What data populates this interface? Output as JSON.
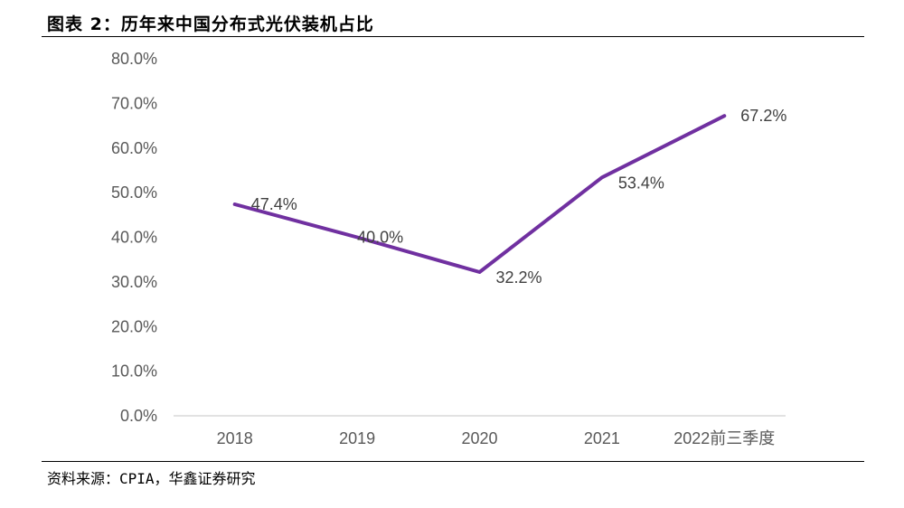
{
  "title": "图表 2：历年来中国分布式光伏装机占比",
  "source": "资料来源：CPIA，华鑫证券研究",
  "colors": {
    "line": "#7030A0",
    "axis": "#D9D9D9",
    "text": "#595959"
  },
  "chart_data": {
    "type": "line",
    "categories": [
      "2018",
      "2019",
      "2020",
      "2021",
      "2022前三季度"
    ],
    "series": [
      {
        "values": [
          47.4,
          40.0,
          32.2,
          53.4,
          67.2
        ],
        "data_labels": [
          "47.4%",
          "40.0%",
          "32.2%",
          "53.4%",
          "67.2%"
        ]
      }
    ],
    "ylim": [
      0,
      80
    ],
    "yticks": [
      0,
      10,
      20,
      30,
      40,
      50,
      60,
      70,
      80
    ],
    "ytick_labels": [
      "0.0%",
      "10.0%",
      "20.0%",
      "30.0%",
      "40.0%",
      "50.0%",
      "60.0%",
      "70.0%",
      "80.0%"
    ],
    "grid": false,
    "legend": "none"
  }
}
